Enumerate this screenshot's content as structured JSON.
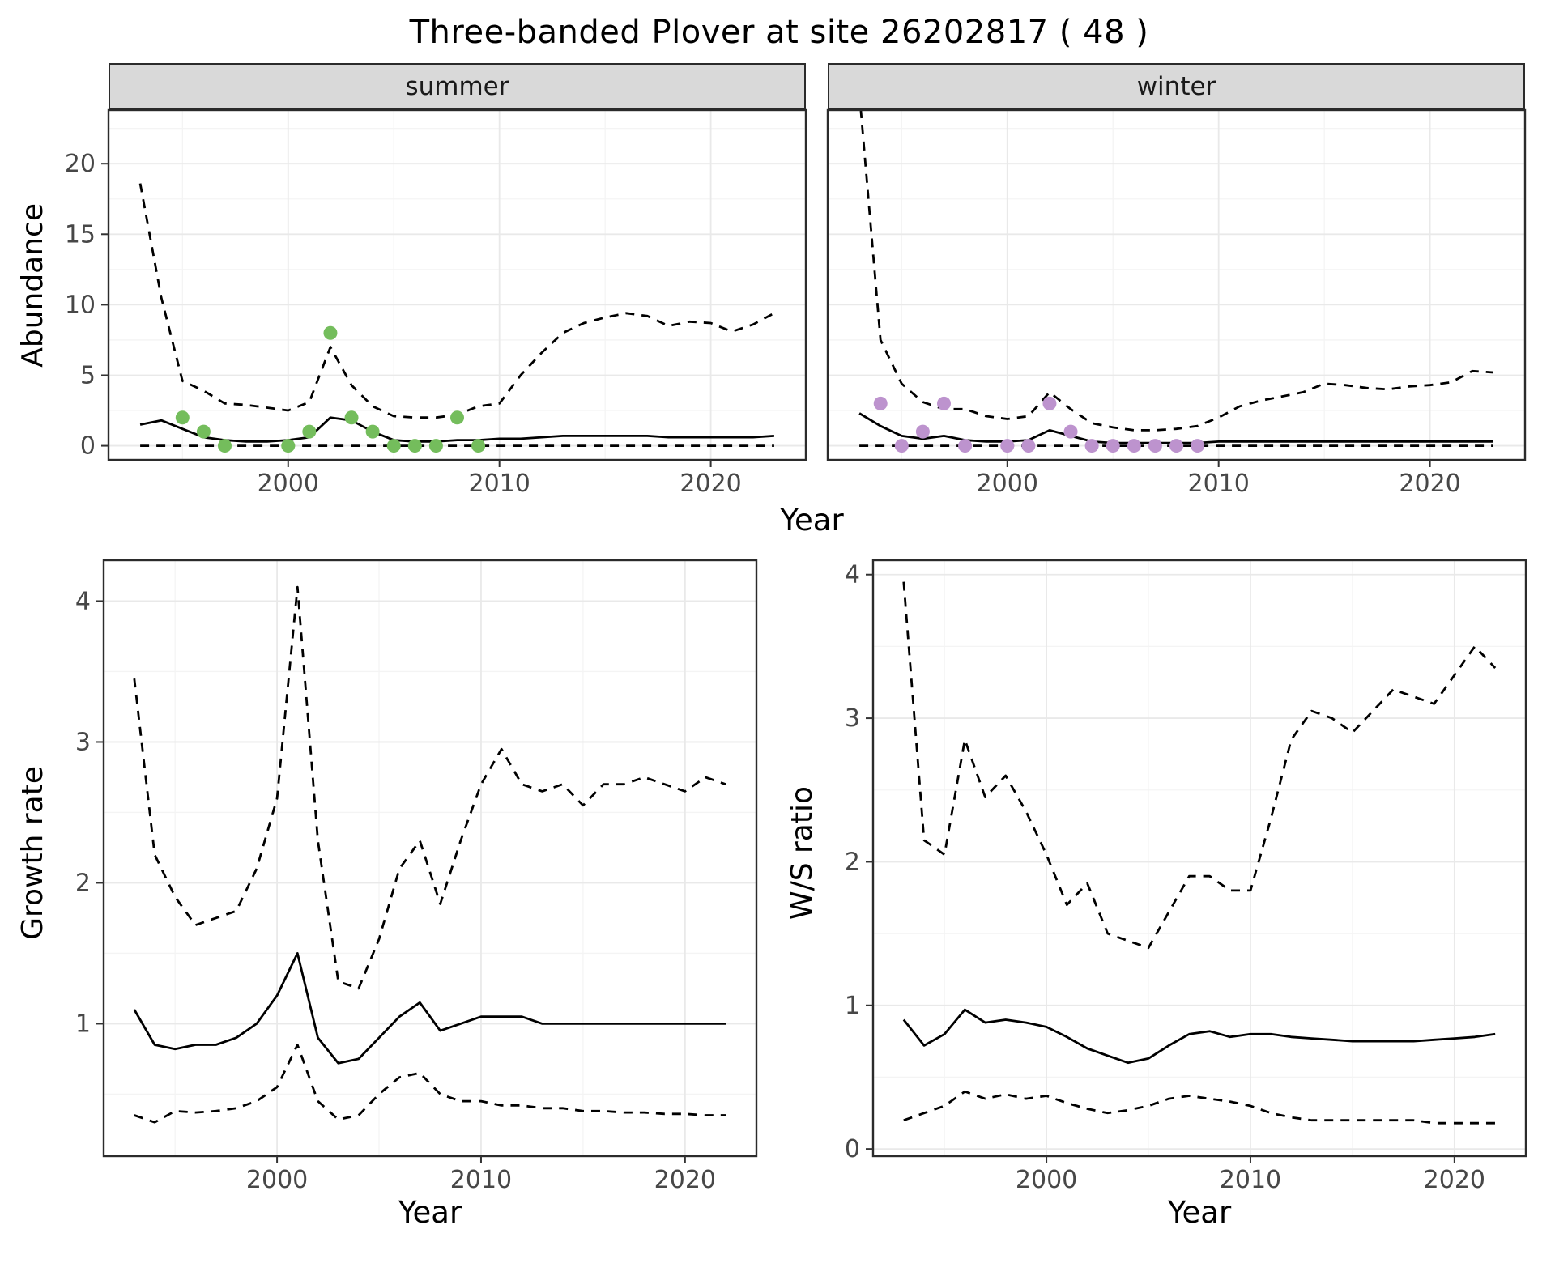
{
  "title": "Three-banded Plover at site 26202817 ( 48 )",
  "colors": {
    "line": "#000000",
    "summer_points": "#74bd5c",
    "winter_points": "#bd93ce",
    "strip_bg": "#d9d9d9",
    "panel_bg": "#ffffff",
    "panel_border": "#2b2b2b",
    "grid_major": "#e9e9e9",
    "grid_minor": "#f4f4f4",
    "tick_text": "#474747",
    "tick_mark": "#333333"
  },
  "chart_data": [
    {
      "id": "abundance-summer",
      "type": "line",
      "facet_label": "summer",
      "xlabel": "Year",
      "ylabel": "Abundance",
      "xlim": [
        1991.5,
        2024.5
      ],
      "ylim": [
        -1.0,
        23.8
      ],
      "xticks": [
        2000,
        2010,
        2020
      ],
      "yticks": [
        0,
        5,
        10,
        15,
        20
      ],
      "grid": true,
      "x": [
        1993,
        1994,
        1995,
        1996,
        1997,
        1998,
        1999,
        2000,
        2001,
        2002,
        2003,
        2004,
        2005,
        2006,
        2007,
        2008,
        2009,
        2010,
        2011,
        2012,
        2013,
        2014,
        2015,
        2016,
        2017,
        2018,
        2019,
        2020,
        2021,
        2022,
        2023
      ],
      "series": [
        {
          "name": "upper-ci",
          "style": "dashed",
          "values": [
            18.6,
            10.5,
            4.6,
            3.9,
            3.0,
            2.9,
            2.7,
            2.5,
            3.1,
            7.0,
            4.3,
            2.8,
            2.1,
            2.0,
            2.0,
            2.2,
            2.8,
            3.0,
            5.0,
            6.6,
            8.0,
            8.7,
            9.1,
            9.4,
            9.2,
            8.5,
            8.8,
            8.7,
            8.1,
            8.6,
            9.4
          ]
        },
        {
          "name": "median",
          "style": "solid",
          "values": [
            1.5,
            1.8,
            1.2,
            0.6,
            0.4,
            0.3,
            0.3,
            0.4,
            0.6,
            2.0,
            1.8,
            1.0,
            0.4,
            0.3,
            0.3,
            0.4,
            0.4,
            0.5,
            0.5,
            0.6,
            0.7,
            0.7,
            0.7,
            0.7,
            0.7,
            0.6,
            0.6,
            0.6,
            0.6,
            0.6,
            0.7
          ]
        },
        {
          "name": "lower-ci",
          "style": "dashed",
          "values": [
            0,
            0,
            0,
            0,
            0,
            0,
            0,
            0,
            0,
            0,
            0,
            0,
            0,
            0,
            0,
            0,
            0,
            0,
            0,
            0,
            0,
            0,
            0,
            0,
            0,
            0,
            0,
            0,
            0,
            0,
            0
          ]
        }
      ],
      "points": {
        "name": "observed-counts-summer",
        "color": "#74bd5c",
        "x": [
          1995,
          1996,
          1997,
          2000,
          2001,
          2002,
          2003,
          2004,
          2005,
          2006,
          2007,
          2008,
          2009
        ],
        "y": [
          2,
          1,
          0,
          0,
          1,
          8,
          2,
          1,
          0,
          0,
          0,
          2,
          0
        ]
      }
    },
    {
      "id": "abundance-winter",
      "type": "line",
      "facet_label": "winter",
      "xlabel": "Year",
      "ylabel": "Abundance",
      "xlim": [
        1991.5,
        2024.5
      ],
      "ylim": [
        -1.0,
        23.8
      ],
      "xticks": [
        2000,
        2010,
        2020
      ],
      "yticks": [
        0,
        5,
        10,
        15,
        20
      ],
      "grid": true,
      "x": [
        1993,
        1994,
        1995,
        1996,
        1997,
        1998,
        1999,
        2000,
        2001,
        2002,
        2003,
        2004,
        2005,
        2006,
        2007,
        2008,
        2009,
        2010,
        2011,
        2012,
        2013,
        2014,
        2015,
        2016,
        2017,
        2018,
        2019,
        2020,
        2021,
        2022,
        2023
      ],
      "series": [
        {
          "name": "upper-ci",
          "style": "dashed",
          "values": [
            25.0,
            7.5,
            4.4,
            3.1,
            2.6,
            2.6,
            2.1,
            1.9,
            2.1,
            3.8,
            2.6,
            1.6,
            1.3,
            1.1,
            1.1,
            1.2,
            1.4,
            2.0,
            2.8,
            3.2,
            3.5,
            3.8,
            4.4,
            4.3,
            4.1,
            4.0,
            4.2,
            4.3,
            4.5,
            5.3,
            5.2
          ]
        },
        {
          "name": "median",
          "style": "solid",
          "values": [
            2.3,
            1.4,
            0.7,
            0.5,
            0.7,
            0.4,
            0.3,
            0.3,
            0.4,
            1.1,
            0.7,
            0.3,
            0.2,
            0.2,
            0.2,
            0.2,
            0.2,
            0.3,
            0.3,
            0.3,
            0.3,
            0.3,
            0.3,
            0.3,
            0.3,
            0.3,
            0.3,
            0.3,
            0.3,
            0.3,
            0.3
          ]
        },
        {
          "name": "lower-ci",
          "style": "dashed",
          "values": [
            0,
            0,
            0,
            0,
            0,
            0,
            0,
            0,
            0,
            0,
            0,
            0,
            0,
            0,
            0,
            0,
            0,
            0,
            0,
            0,
            0,
            0,
            0,
            0,
            0,
            0,
            0,
            0,
            0,
            0,
            0
          ]
        }
      ],
      "points": {
        "name": "observed-counts-winter",
        "color": "#bd93ce",
        "x": [
          1994,
          1995,
          1996,
          1997,
          1998,
          2000,
          2001,
          2002,
          2003,
          2004,
          2005,
          2006,
          2007,
          2008,
          2009
        ],
        "y": [
          3,
          0,
          1,
          3,
          0,
          0,
          0,
          3,
          1,
          0,
          0,
          0,
          0,
          0,
          0
        ]
      }
    },
    {
      "id": "growth-rate",
      "type": "line",
      "facet_label": "",
      "xlabel": "Year",
      "ylabel": "Growth rate",
      "xlim": [
        1991.5,
        2023.5
      ],
      "ylim": [
        0.06,
        4.29
      ],
      "xticks": [
        2000,
        2010,
        2020
      ],
      "yticks": [
        1,
        2,
        3,
        4
      ],
      "grid": true,
      "x": [
        1993,
        1994,
        1995,
        1996,
        1997,
        1998,
        1999,
        2000,
        2001,
        2002,
        2003,
        2004,
        2005,
        2006,
        2007,
        2008,
        2009,
        2010,
        2011,
        2012,
        2013,
        2014,
        2015,
        2016,
        2017,
        2018,
        2019,
        2020,
        2021,
        2022
      ],
      "series": [
        {
          "name": "upper-ci",
          "style": "dashed",
          "values": [
            3.45,
            2.2,
            1.9,
            1.7,
            1.75,
            1.8,
            2.1,
            2.6,
            4.1,
            2.3,
            1.3,
            1.25,
            1.6,
            2.1,
            2.3,
            1.85,
            2.3,
            2.7,
            2.95,
            2.7,
            2.65,
            2.7,
            2.55,
            2.7,
            2.7,
            2.75,
            2.7,
            2.65,
            2.75,
            2.7
          ]
        },
        {
          "name": "median",
          "style": "solid",
          "values": [
            1.1,
            0.85,
            0.82,
            0.85,
            0.85,
            0.9,
            1.0,
            1.2,
            1.5,
            0.9,
            0.72,
            0.75,
            0.9,
            1.05,
            1.15,
            0.95,
            1.0,
            1.05,
            1.05,
            1.05,
            1.0,
            1.0,
            1.0,
            1.0,
            1.0,
            1.0,
            1.0,
            1.0,
            1.0,
            1.0
          ]
        },
        {
          "name": "lower-ci",
          "style": "dashed",
          "values": [
            0.35,
            0.3,
            0.38,
            0.37,
            0.38,
            0.4,
            0.45,
            0.55,
            0.85,
            0.45,
            0.32,
            0.35,
            0.5,
            0.62,
            0.65,
            0.5,
            0.45,
            0.45,
            0.42,
            0.42,
            0.4,
            0.4,
            0.38,
            0.38,
            0.37,
            0.37,
            0.36,
            0.36,
            0.35,
            0.35
          ]
        }
      ],
      "points": null
    },
    {
      "id": "ws-ratio",
      "type": "line",
      "facet_label": "",
      "xlabel": "Year",
      "ylabel": "W/S ratio",
      "xlim": [
        1991.5,
        2023.5
      ],
      "ylim": [
        -0.05,
        4.1
      ],
      "xticks": [
        2000,
        2010,
        2020
      ],
      "yticks": [
        0,
        1,
        2,
        3,
        4
      ],
      "grid": true,
      "x": [
        1993,
        1994,
        1995,
        1996,
        1997,
        1998,
        1999,
        2000,
        2001,
        2002,
        2003,
        2004,
        2005,
        2006,
        2007,
        2008,
        2009,
        2010,
        2011,
        2012,
        2013,
        2014,
        2015,
        2016,
        2017,
        2018,
        2019,
        2020,
        2021,
        2022
      ],
      "series": [
        {
          "name": "upper-ci",
          "style": "dashed",
          "values": [
            3.95,
            2.15,
            2.05,
            2.85,
            2.45,
            2.6,
            2.35,
            2.05,
            1.7,
            1.85,
            1.5,
            1.45,
            1.4,
            1.65,
            1.9,
            1.9,
            1.8,
            1.8,
            2.3,
            2.85,
            3.05,
            3.0,
            2.9,
            3.05,
            3.2,
            3.15,
            3.1,
            3.3,
            3.5,
            3.35
          ]
        },
        {
          "name": "median",
          "style": "solid",
          "values": [
            0.9,
            0.72,
            0.8,
            0.97,
            0.88,
            0.9,
            0.88,
            0.85,
            0.78,
            0.7,
            0.65,
            0.6,
            0.63,
            0.72,
            0.8,
            0.82,
            0.78,
            0.8,
            0.8,
            0.78,
            0.77,
            0.76,
            0.75,
            0.75,
            0.75,
            0.75,
            0.76,
            0.77,
            0.78,
            0.8
          ]
        },
        {
          "name": "lower-ci",
          "style": "dashed",
          "values": [
            0.2,
            0.25,
            0.3,
            0.4,
            0.35,
            0.38,
            0.35,
            0.37,
            0.32,
            0.28,
            0.25,
            0.27,
            0.3,
            0.35,
            0.37,
            0.35,
            0.33,
            0.3,
            0.25,
            0.22,
            0.2,
            0.2,
            0.2,
            0.2,
            0.2,
            0.2,
            0.18,
            0.18,
            0.18,
            0.18
          ]
        }
      ],
      "points": null
    }
  ]
}
